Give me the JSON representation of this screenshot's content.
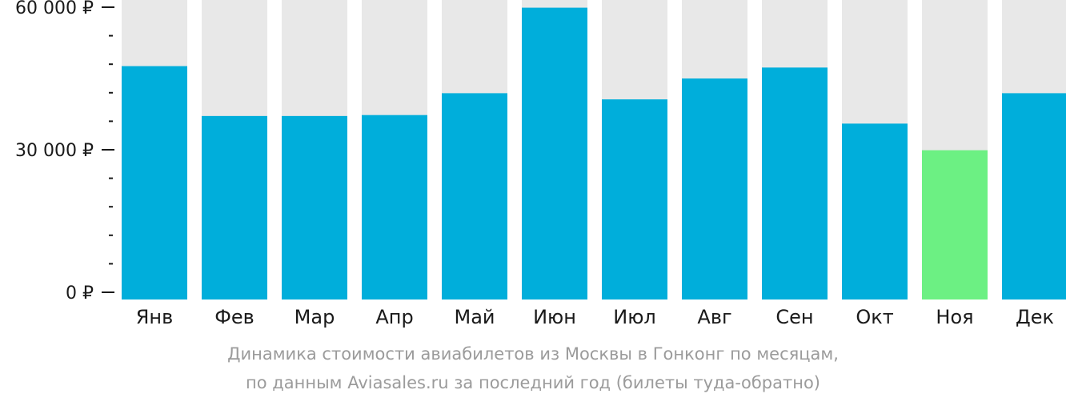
{
  "chart_data": {
    "type": "bar",
    "categories": [
      "Янв",
      "Фев",
      "Мар",
      "Апр",
      "Май",
      "Июн",
      "Июл",
      "Авг",
      "Сен",
      "Окт",
      "Ноя",
      "Дек"
    ],
    "values": [
      47600,
      37100,
      37100,
      37300,
      41900,
      59900,
      40600,
      45000,
      47300,
      35500,
      29900,
      41900
    ],
    "ylim": [
      0,
      60000
    ],
    "yticks": [
      {
        "value": 0,
        "label": "0 ₽"
      },
      {
        "value": 30000,
        "label": "30 000 ₽"
      },
      {
        "value": 60000,
        "label": "60 000 ₽"
      }
    ],
    "minor_tick_step": 6000,
    "highlight_index": 10,
    "colors": {
      "bar": "#00aedb",
      "highlight": "#6cf083",
      "track": "#e8e8e8",
      "axis": "#1a1a1a",
      "caption": "#9b9b9b"
    },
    "caption_lines": [
      "Динамика стоимости авиабилетов из Москвы в Гонконг по месяцам,",
      "по данным Aviasales.ru за последний год (билеты туда-обратно)"
    ]
  }
}
